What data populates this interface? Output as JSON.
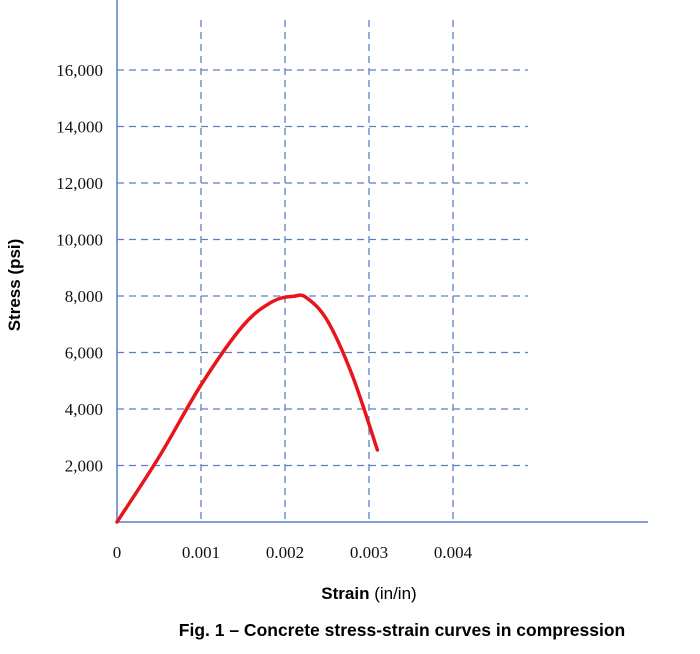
{
  "chart_data": {
    "type": "line",
    "caption": "Fig. 1 – Concrete stress-strain curves in compression",
    "xlabel_bold": "Strain",
    "xlabel_unit": " (in/in)",
    "ylabel": "Stress (psi)",
    "xlim": [
      0,
      0.0063
    ],
    "ylim": [
      0,
      18000
    ],
    "x_ticks": [
      {
        "value": 0,
        "label": "0"
      },
      {
        "value": 0.001,
        "label": "0.001"
      },
      {
        "value": 0.002,
        "label": "0.002"
      },
      {
        "value": 0.003,
        "label": "0.003"
      },
      {
        "value": 0.004,
        "label": "0.004"
      }
    ],
    "y_ticks": [
      {
        "value": 2000,
        "label": "2,000"
      },
      {
        "value": 4000,
        "label": "4,000"
      },
      {
        "value": 6000,
        "label": "6,000"
      },
      {
        "value": 8000,
        "label": "8,000"
      },
      {
        "value": 10000,
        "label": "10,000"
      },
      {
        "value": 12000,
        "label": "12,000"
      },
      {
        "value": 14000,
        "label": "14,000"
      },
      {
        "value": 16000,
        "label": "16,000"
      }
    ],
    "grid": true,
    "series": [
      {
        "color": "#e8151b",
        "x": [
          0,
          0.0005,
          0.001,
          0.0015,
          0.00185,
          0.0021,
          0.00225,
          0.0025,
          0.0028,
          0.0031
        ],
        "y": [
          0,
          2300,
          4850,
          6950,
          7800,
          7990,
          7950,
          7150,
          5200,
          2550
        ]
      }
    ]
  },
  "colors": {
    "axis": "#5b7fc4",
    "grid": "#5b7fc4",
    "curve": "#e8151b"
  }
}
